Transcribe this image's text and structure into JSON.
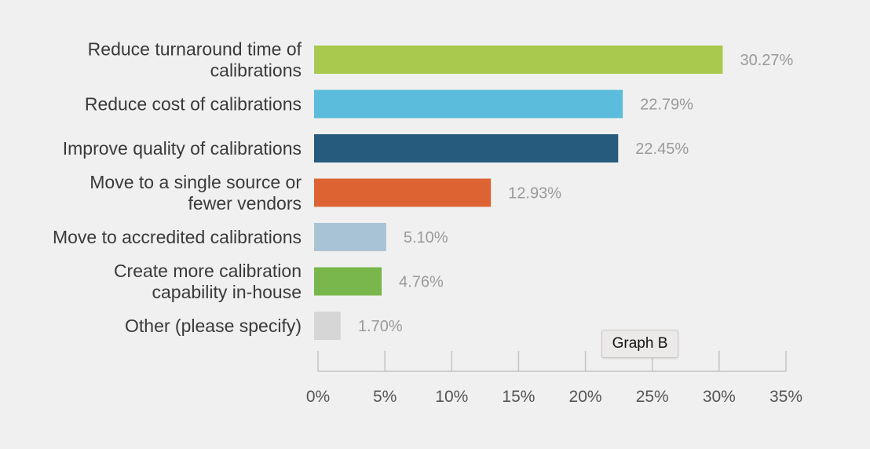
{
  "chart_data": {
    "type": "bar",
    "orientation": "horizontal",
    "categories": [
      [
        "Reduce turnaround time of",
        "calibrations"
      ],
      [
        "Reduce cost of calibrations"
      ],
      [
        "Improve quality of calibrations"
      ],
      [
        "Move to a single source or",
        "fewer vendors"
      ],
      [
        "Move to accredited calibrations"
      ],
      [
        "Create more calibration",
        "capability in-house"
      ],
      [
        "Other (please specify)"
      ]
    ],
    "values": [
      30.27,
      22.79,
      22.45,
      12.93,
      5.1,
      4.76,
      1.7
    ],
    "value_labels": [
      "30.27%",
      "22.79%",
      "22.45%",
      "12.93%",
      "5.10%",
      "4.76%",
      "1.70%"
    ],
    "colors": [
      "#a8c94e",
      "#5bbcdc",
      "#275b7d",
      "#dd6432",
      "#a8c4d4",
      "#79b64b",
      "#d6d6d6"
    ],
    "xlim": [
      0,
      35
    ],
    "ticks": [
      0,
      5,
      10,
      15,
      20,
      25,
      30,
      35
    ],
    "tick_labels": [
      "0%",
      "5%",
      "10%",
      "15%",
      "20%",
      "25%",
      "30%",
      "35%"
    ],
    "grid": false,
    "title": "",
    "xlabel": "",
    "ylabel": ""
  },
  "tooltip": {
    "text": "Graph B"
  }
}
